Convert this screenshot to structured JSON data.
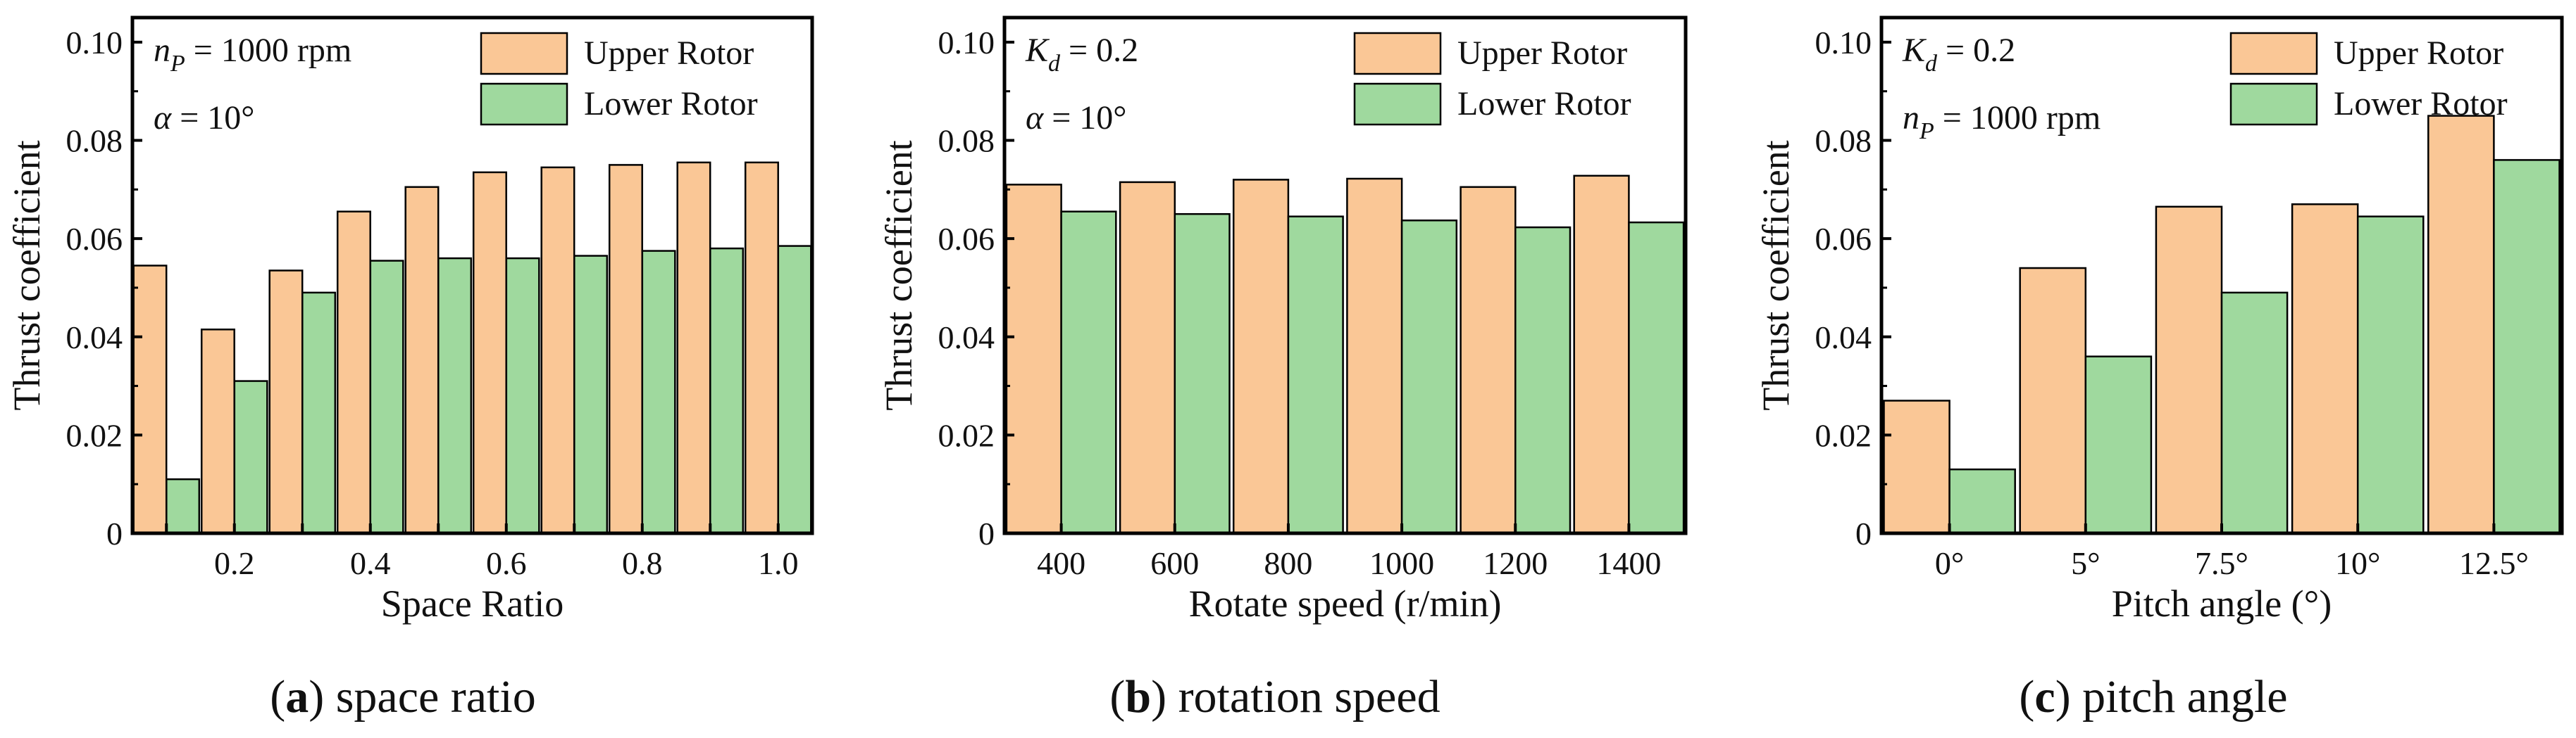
{
  "colors": {
    "upper_fill": "#FAC796",
    "lower_fill": "#9FD99E",
    "stroke": "#000000"
  },
  "chart_data": [
    {
      "type": "bar",
      "caption": {
        "letter": "a",
        "text": "space ratio"
      },
      "xlabel": "Space Ratio",
      "ylabel": "Thrust coefficient",
      "ylim": [
        0,
        0.105
      ],
      "yticks": [
        "0",
        "0.02",
        "0.04",
        "0.06",
        "0.08",
        "0.10"
      ],
      "x": [
        0.1,
        0.2,
        0.3,
        0.4,
        0.5,
        0.6,
        0.7,
        0.8,
        0.9,
        1.0
      ],
      "xtick_labels": [
        "",
        "0.2",
        "",
        "0.4",
        "",
        "0.6",
        "",
        "0.8",
        "",
        "1.0"
      ],
      "annotations": [
        {
          "var": "n",
          "sub": "P",
          "rest": " = 1000 rpm"
        },
        {
          "var": "α",
          "sub": "",
          "rest": " = 10°"
        }
      ],
      "legend": [
        "Upper Rotor",
        "Lower Rotor"
      ],
      "legend_loc": "top-right",
      "series": [
        {
          "name": "Upper Rotor",
          "values": [
            0.0545,
            0.0415,
            0.0535,
            0.0655,
            0.0705,
            0.0735,
            0.0745,
            0.075,
            0.0755,
            0.0755
          ]
        },
        {
          "name": "Lower Rotor",
          "values": [
            0.011,
            0.031,
            0.049,
            0.0555,
            0.056,
            0.056,
            0.0565,
            0.0575,
            0.058,
            0.0585
          ]
        }
      ]
    },
    {
      "type": "bar",
      "caption": {
        "letter": "b",
        "text": "rotation speed"
      },
      "xlabel": "Rotate speed (r/min)",
      "ylabel": "Thrust coefficient",
      "ylim": [
        0,
        0.105
      ],
      "yticks": [
        "0",
        "0.02",
        "0.04",
        "0.06",
        "0.08",
        "0.10"
      ],
      "categories": [
        "400",
        "600",
        "800",
        "1000",
        "1200",
        "1400"
      ],
      "xtick_labels": [
        "400",
        "600",
        "800",
        "1000",
        "1200",
        "1400"
      ],
      "annotations": [
        {
          "var": "K",
          "sub": "d",
          "rest": " = 0.2"
        },
        {
          "var": "α",
          "sub": "",
          "rest": " = 10°"
        }
      ],
      "legend": [
        "Upper Rotor",
        "Lower Rotor"
      ],
      "legend_loc": "top-right",
      "series": [
        {
          "name": "Upper Rotor",
          "values": [
            0.071,
            0.0715,
            0.072,
            0.0722,
            0.0705,
            0.0728
          ]
        },
        {
          "name": "Lower Rotor",
          "values": [
            0.0655,
            0.065,
            0.0645,
            0.0637,
            0.0623,
            0.0633
          ]
        }
      ]
    },
    {
      "type": "bar",
      "caption": {
        "letter": "c",
        "text": "pitch angle"
      },
      "xlabel": "Pitch angle (°)",
      "ylabel": "Thrust coefficient",
      "ylim": [
        0,
        0.105
      ],
      "yticks": [
        "0",
        "0.02",
        "0.04",
        "0.06",
        "0.08",
        "0.10"
      ],
      "categories": [
        "0°",
        "5°",
        "7.5°",
        "10°",
        "12.5°"
      ],
      "xtick_labels": [
        "0°",
        "5°",
        "7.5°",
        "10°",
        "12.5°"
      ],
      "annotations": [
        {
          "var": "K",
          "sub": "d",
          "rest": " = 0.2"
        },
        {
          "var": "n",
          "sub": "P",
          "rest": " = 1000 rpm"
        }
      ],
      "legend": [
        "Upper Rotor",
        "Lower Rotor"
      ],
      "legend_loc": "top-right",
      "series": [
        {
          "name": "Upper Rotor",
          "values": [
            0.027,
            0.054,
            0.0665,
            0.067,
            0.085
          ]
        },
        {
          "name": "Lower Rotor",
          "values": [
            0.013,
            0.036,
            0.049,
            0.0645,
            0.076
          ]
        }
      ]
    }
  ]
}
